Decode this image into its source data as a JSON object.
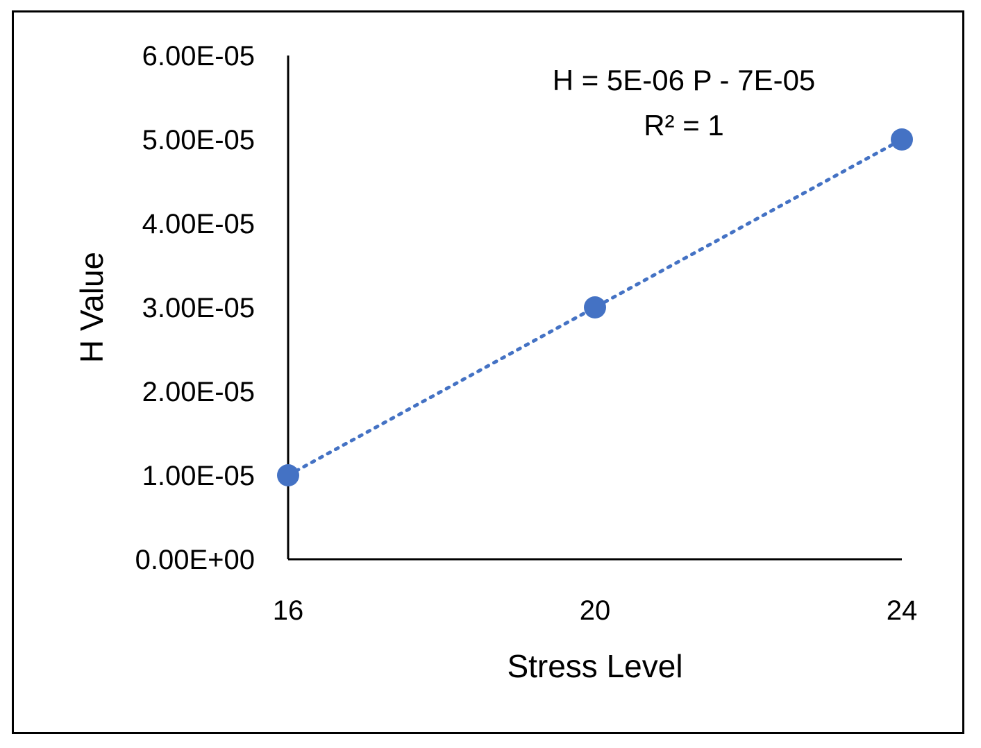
{
  "chart_data": {
    "type": "scatter",
    "x": [
      16,
      20,
      24
    ],
    "series": [
      {
        "values": [
          1e-05,
          3e-05,
          5e-05
        ],
        "color": "#4472C4",
        "trendline": "linear-dotted"
      }
    ],
    "xlabel": "Stress Level",
    "ylabel": "H Value",
    "xticks": [
      "16",
      "20",
      "24"
    ],
    "xlim": [
      16,
      24
    ],
    "yticks": [
      "0.00E+00",
      "1.00E-05",
      "2.00E-05",
      "3.00E-05",
      "4.00E-05",
      "5.00E-05",
      "6.00E-05"
    ],
    "ylim": [
      0,
      6e-05
    ],
    "grid": false,
    "legend": "none",
    "annotations": [
      "H = 5E-06 P - 7E-05",
      "R² = 1"
    ],
    "colors": {
      "marker": "#4472C4",
      "trendline": "#4472C4",
      "axis": "#000000"
    }
  }
}
